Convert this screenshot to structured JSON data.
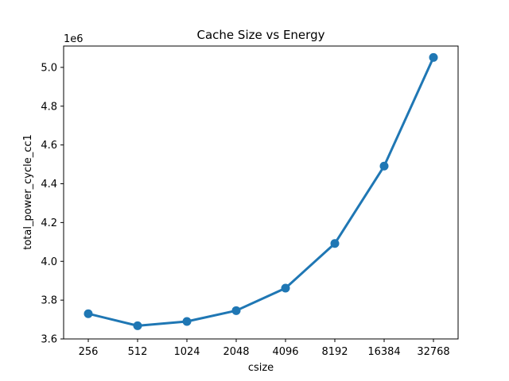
{
  "chart_data": {
    "type": "line",
    "title": "Cache Size vs Energy",
    "xlabel": "csize",
    "ylabel": "total_power_cycle_cc1",
    "offset_label": "1e6",
    "categories": [
      "256",
      "512",
      "1024",
      "2048",
      "4096",
      "8192",
      "16384",
      "32768"
    ],
    "values": [
      3730000,
      3668000,
      3690000,
      3746000,
      3862000,
      4092000,
      4491000,
      5051000
    ],
    "ylim": [
      3600000,
      5110000
    ],
    "yticks": [
      3600000,
      3800000,
      4000000,
      4200000,
      4400000,
      4600000,
      4800000,
      5000000
    ],
    "ytick_labels": [
      "3.6",
      "3.8",
      "4.0",
      "4.2",
      "4.4",
      "4.6",
      "4.8",
      "5.0"
    ],
    "grid": false,
    "color": "#1f77b4"
  }
}
